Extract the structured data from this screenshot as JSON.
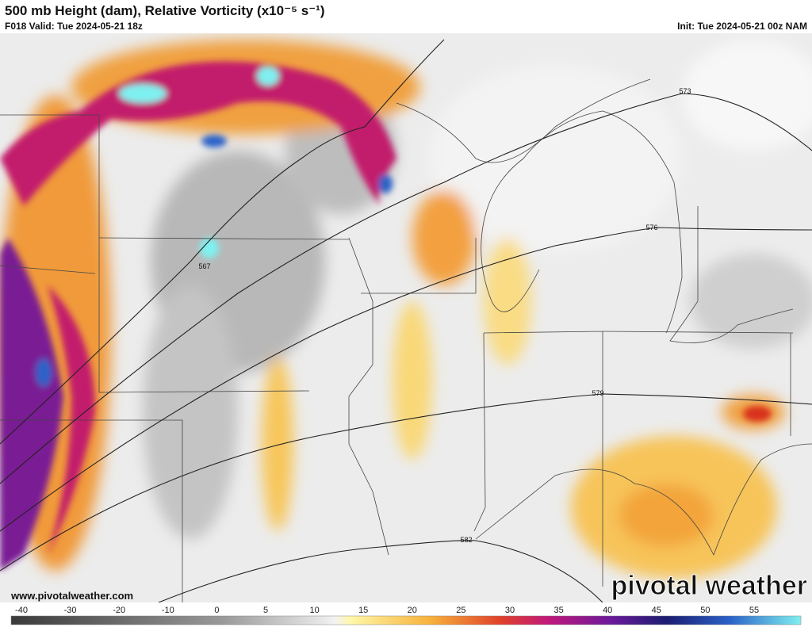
{
  "header": {
    "title": "500 mb Height (dam), Relative Vorticity (x10⁻⁵ s⁻¹)",
    "valid": "F018 Valid: Tue 2024-05-21 18z",
    "init": "Init: Tue 2024-05-21 00z NAM"
  },
  "map": {
    "contour_labels": [
      "567",
      "573",
      "576",
      "579",
      "582"
    ]
  },
  "colorbar": {
    "labels": [
      -40,
      -30,
      -20,
      -10,
      0,
      5,
      10,
      15,
      20,
      25,
      30,
      35,
      40,
      45,
      50,
      55
    ]
  },
  "footer": {
    "website": "www.pivotalweather.com",
    "logo": "pivotal weather"
  }
}
